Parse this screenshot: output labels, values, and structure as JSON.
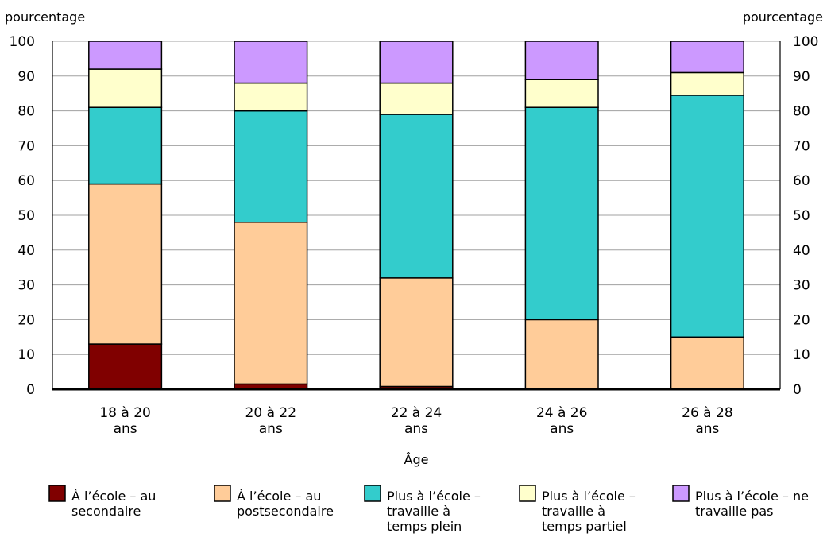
{
  "chart_data": {
    "type": "bar",
    "stacked": true,
    "categories": [
      "18 à 20 ans",
      "20 à 22 ans",
      "22 à 24 ans",
      "24 à 26 ans",
      "26 à 28 ans"
    ],
    "category_lines": [
      [
        "18 à 20",
        "ans"
      ],
      [
        "20 à 22",
        "ans"
      ],
      [
        "22 à 24",
        "ans"
      ],
      [
        "24 à 26",
        "ans"
      ],
      [
        "26 à 28",
        "ans"
      ]
    ],
    "series": [
      {
        "name": "À l’école – au secondaire",
        "legend_lines": [
          "À l’école – au",
          "secondaire"
        ],
        "color": "#800000",
        "values": [
          13,
          1.5,
          0.8,
          0,
          0
        ]
      },
      {
        "name": "À l’école – au postsecondaire",
        "legend_lines": [
          "À l’école – au",
          "postsecondaire"
        ],
        "color": "#ffcc99",
        "values": [
          46,
          46.5,
          31.2,
          20,
          15
        ]
      },
      {
        "name": "Plus à l’école – travaille à temps plein",
        "legend_lines": [
          "Plus à l’école –",
          "travaille à",
          "temps plein"
        ],
        "color": "#33cccc",
        "values": [
          22,
          32,
          47,
          61,
          69.5
        ]
      },
      {
        "name": "Plus à l’école – travaille à temps partiel",
        "legend_lines": [
          "Plus à l’école –",
          "travaille à",
          "temps partiel"
        ],
        "color": "#ffffcc",
        "values": [
          11,
          8,
          9,
          8,
          6.5
        ]
      },
      {
        "name": "Plus à l’école – ne travaille pas",
        "legend_lines": [
          "Plus à l’école – ne",
          "travaille pas"
        ],
        "color": "#cc99ff",
        "values": [
          8,
          12,
          12,
          11,
          9
        ]
      }
    ],
    "title": "",
    "xlabel": "Âge",
    "ylabel_left": "pourcentage",
    "ylabel_right": "pourcentage",
    "ylim": [
      0,
      100
    ],
    "yticks": [
      0,
      10,
      20,
      30,
      40,
      50,
      60,
      70,
      80,
      90,
      100
    ],
    "grid": true,
    "legend_position": "bottom"
  }
}
